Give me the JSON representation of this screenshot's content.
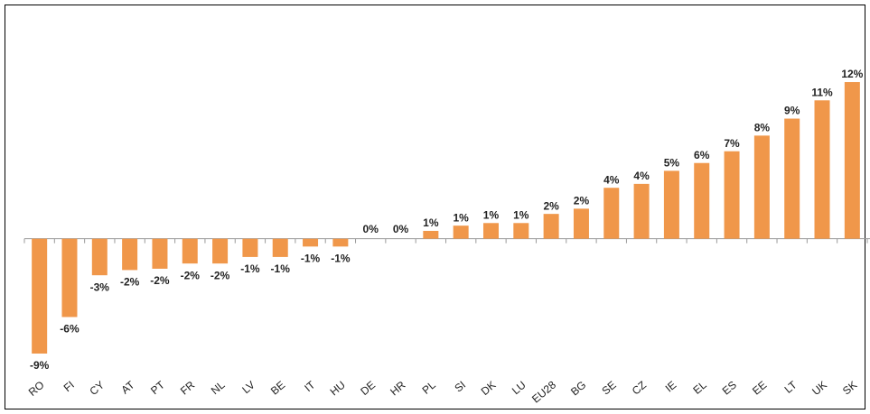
{
  "chart_data": {
    "type": "bar",
    "categories": [
      "RO",
      "FI",
      "CY",
      "AT",
      "PT",
      "FR",
      "NL",
      "LV",
      "BE",
      "IT",
      "HU",
      "DE",
      "HR",
      "PL",
      "SI",
      "DK",
      "LU",
      "EU28",
      "BG",
      "SE",
      "CZ",
      "IE",
      "EL",
      "ES",
      "EE",
      "LT",
      "UK",
      "SK"
    ],
    "values": [
      -8.8,
      -6.0,
      -2.8,
      -2.4,
      -2.3,
      -1.9,
      -1.9,
      -1.4,
      -1.4,
      -0.6,
      -0.6,
      0,
      0,
      0.6,
      1.0,
      1.2,
      1.2,
      1.9,
      2.3,
      3.9,
      4.2,
      5.2,
      5.8,
      6.7,
      7.9,
      9.2,
      10.6,
      12.0
    ],
    "value_labels": [
      "-9%",
      "-6%",
      "-3%",
      "-2%",
      "-2%",
      "-2%",
      "-2%",
      "-1%",
      "-1%",
      "-1%",
      "-1%",
      "0%",
      "0%",
      "1%",
      "1%",
      "1%",
      "1%",
      "2%",
      "2%",
      "4%",
      "4%",
      "5%",
      "6%",
      "7%",
      "8%",
      "9%",
      "11%",
      "12%"
    ],
    "color": "#f0974a"
  }
}
